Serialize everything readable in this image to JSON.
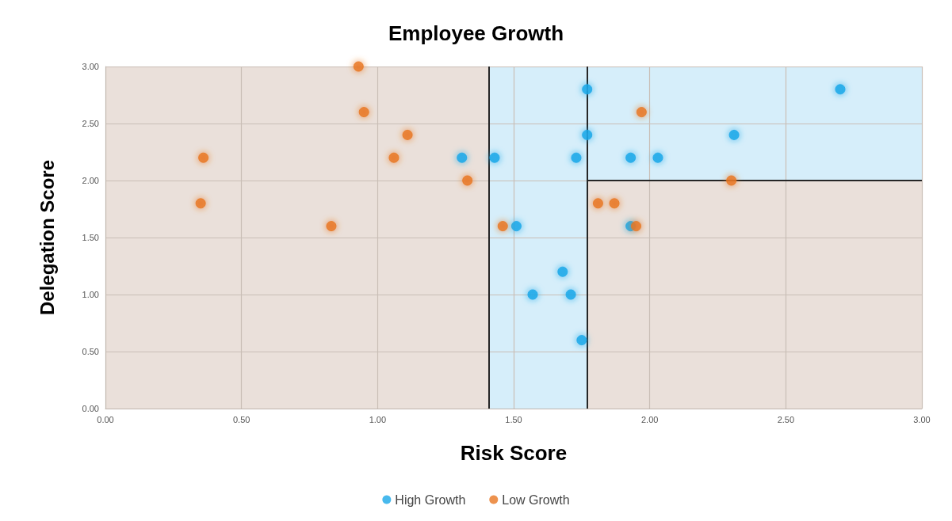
{
  "chart_data": {
    "type": "scatter",
    "title": "Employee Growth",
    "xlabel": "Risk Score",
    "ylabel": "Delegation Score",
    "xlim": [
      0,
      3
    ],
    "ylim": [
      0,
      3
    ],
    "xticks": [
      {
        "value": 0,
        "label": "0.00"
      },
      {
        "value": 0.5,
        "label": "0.50"
      },
      {
        "value": 1,
        "label": "1.00"
      },
      {
        "value": 1.5,
        "label": "1.50"
      },
      {
        "value": 2,
        "label": "2.00"
      },
      {
        "value": 2.5,
        "label": "2.50"
      },
      {
        "value": 3,
        "label": "3.00"
      }
    ],
    "yticks": [
      {
        "value": 0,
        "label": "0.00"
      },
      {
        "value": 0.5,
        "label": "0.50"
      },
      {
        "value": 1,
        "label": "1.00"
      },
      {
        "value": 1.5,
        "label": "1.50"
      },
      {
        "value": 2,
        "label": "2.00"
      },
      {
        "value": 2.5,
        "label": "2.50"
      },
      {
        "value": 3,
        "label": "3.00"
      }
    ],
    "grid": true,
    "legend": "bottom",
    "marker": "circle",
    "series": [
      {
        "name": "High Growth",
        "color": "#1aa7e8",
        "x": [
          1.31,
          1.43,
          1.77,
          1.77,
          1.73,
          1.93,
          2.03,
          2.31,
          2.7,
          1.51,
          1.93,
          1.68,
          1.57,
          1.71,
          1.75
        ],
        "values": [
          2.2,
          2.2,
          2.8,
          2.4,
          2.2,
          2.2,
          2.2,
          2.4,
          2.8,
          1.6,
          1.6,
          1.2,
          1.0,
          1.0,
          0.6
        ]
      },
      {
        "name": "Low Growth",
        "color": "#e87722",
        "x": [
          0.93,
          0.95,
          1.11,
          1.06,
          0.36,
          0.35,
          0.83,
          1.33,
          1.46,
          1.97,
          2.3,
          1.81,
          1.87,
          1.95
        ],
        "values": [
          3.0,
          2.6,
          2.4,
          2.2,
          2.2,
          1.8,
          1.6,
          2.0,
          1.6,
          2.6,
          2.0,
          1.8,
          1.8,
          1.6
        ]
      }
    ],
    "bands": [
      {
        "axis": "x",
        "from": 0,
        "to": 3,
        "color": "#eae0da",
        "label": null
      },
      {
        "axis": "x",
        "from": 1.41,
        "to": 1.77,
        "color": "#d6eefa",
        "label": null
      },
      {
        "axis": "y",
        "from": 2,
        "to": 3,
        "color": "#d6eefa",
        "label": null
      }
    ],
    "ref_lines": [
      {
        "axis": "x",
        "value": 1.41,
        "label": null,
        "color": "#262626"
      },
      {
        "axis": "x",
        "value": 1.77,
        "label": null,
        "color": "#262626"
      },
      {
        "axis": "y",
        "value": 2,
        "label": null,
        "color": "#262626"
      }
    ]
  }
}
